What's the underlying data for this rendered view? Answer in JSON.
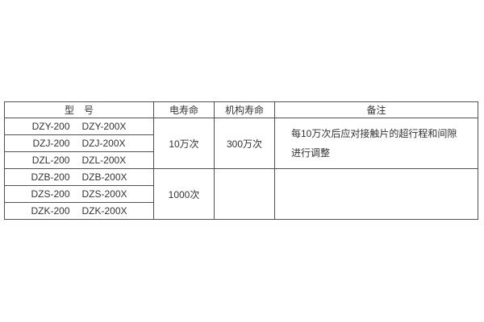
{
  "table": {
    "colors": {
      "border": "#505050",
      "text": "#333333",
      "background": "#ffffff"
    },
    "headers": {
      "model": "型　号",
      "electrical_life": "电寿命",
      "mechanical_life": "机构寿命",
      "remarks": "备注"
    },
    "rows": [
      {
        "models": [
          "DZY-200",
          "DZY-200X"
        ]
      },
      {
        "models": [
          "DZJ-200",
          "DZJ-200X"
        ]
      },
      {
        "models": [
          "DZL-200",
          "DZL-200X"
        ]
      },
      {
        "models": [
          "DZB-200",
          "DZB-200X"
        ]
      },
      {
        "models": [
          "DZS-200",
          "DZS-200X"
        ]
      },
      {
        "models": [
          "DZK-200",
          "DZK-200X"
        ]
      }
    ],
    "groups": [
      {
        "electrical_life": "10万次",
        "mechanical_life": "300万次",
        "remarks_line1": "每10万次后应对接触片的超行程和间隙",
        "remarks_line2": "进行调整"
      },
      {
        "electrical_life": "1000次",
        "mechanical_life": "",
        "remarks_line1": "",
        "remarks_line2": ""
      }
    ]
  }
}
